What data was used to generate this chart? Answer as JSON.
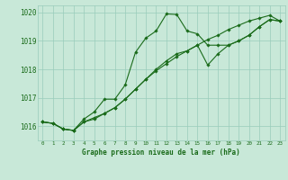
{
  "xlabel": "Graphe pression niveau de la mer (hPa)",
  "background_color": "#c8e8d8",
  "grid_color": "#99ccbb",
  "line_color": "#1a6b1a",
  "x": [
    0,
    1,
    2,
    3,
    4,
    5,
    6,
    7,
    8,
    9,
    10,
    11,
    12,
    13,
    14,
    15,
    16,
    17,
    18,
    19,
    20,
    21,
    22,
    23
  ],
  "line1": [
    1016.15,
    1016.1,
    1015.9,
    1015.85,
    1016.15,
    1016.25,
    1016.45,
    1016.65,
    1016.95,
    1017.3,
    1017.65,
    1017.95,
    1018.2,
    1018.45,
    1018.65,
    1018.85,
    1019.05,
    1019.2,
    1019.4,
    1019.55,
    1019.7,
    1019.8,
    1019.9,
    1019.7
  ],
  "line2": [
    1016.15,
    1016.1,
    1015.9,
    1015.85,
    1016.25,
    1016.5,
    1016.95,
    1016.95,
    1017.45,
    1018.6,
    1019.1,
    1019.35,
    1019.95,
    1019.93,
    1019.35,
    1019.25,
    1018.85,
    1018.85,
    1018.85,
    1019.0,
    1019.2,
    1019.5,
    1019.75,
    1019.7
  ],
  "line3": [
    1016.15,
    1016.1,
    1015.9,
    1015.85,
    1016.15,
    1016.3,
    1016.45,
    1016.65,
    1016.95,
    1017.3,
    1017.65,
    1018.0,
    1018.3,
    1018.55,
    1018.65,
    1018.85,
    1018.15,
    1018.55,
    1018.85,
    1019.0,
    1019.2,
    1019.5,
    1019.75,
    1019.7
  ],
  "ylim_min": 1015.5,
  "ylim_max": 1020.25,
  "yticks": [
    1016,
    1017,
    1018,
    1019,
    1020
  ],
  "text_color": "#1a6b1a",
  "markersize": 1.8,
  "linewidth": 0.8
}
